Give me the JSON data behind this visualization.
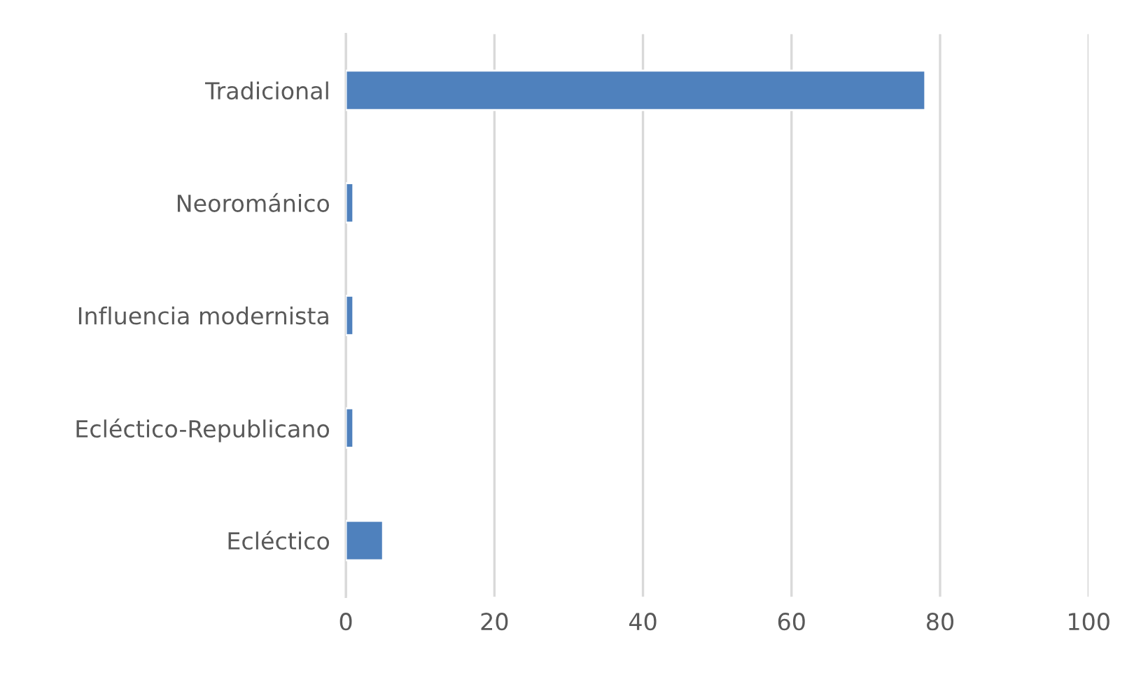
{
  "chart_data": {
    "type": "bar",
    "orientation": "horizontal",
    "categories": [
      "Tradicional",
      "Neorománico",
      "Influencia modernista",
      "Ecléctico-Republicano",
      "Ecléctico"
    ],
    "values": [
      78,
      1,
      1,
      1,
      5
    ],
    "color": "#4f81bd",
    "xlim": [
      0,
      100
    ],
    "xticks": [
      0,
      20,
      40,
      60,
      80,
      100
    ],
    "grid": "x",
    "legend": false
  }
}
